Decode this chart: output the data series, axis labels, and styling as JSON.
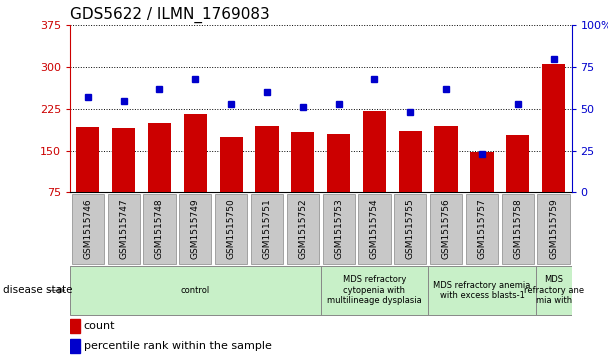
{
  "title": "GDS5622 / ILMN_1769083",
  "samples": [
    "GSM1515746",
    "GSM1515747",
    "GSM1515748",
    "GSM1515749",
    "GSM1515750",
    "GSM1515751",
    "GSM1515752",
    "GSM1515753",
    "GSM1515754",
    "GSM1515755",
    "GSM1515756",
    "GSM1515757",
    "GSM1515758",
    "GSM1515759"
  ],
  "counts": [
    192,
    190,
    200,
    215,
    175,
    195,
    183,
    180,
    222,
    185,
    195,
    147,
    178,
    305
  ],
  "percentiles": [
    57,
    55,
    62,
    68,
    53,
    60,
    51,
    53,
    68,
    48,
    62,
    23,
    53,
    80
  ],
  "ylim_left": [
    75,
    375
  ],
  "ylim_right": [
    0,
    100
  ],
  "yticks_left": [
    75,
    150,
    225,
    300,
    375
  ],
  "yticks_right": [
    0,
    25,
    50,
    75,
    100
  ],
  "bar_color": "#cc0000",
  "dot_color": "#0000cc",
  "disease_groups": [
    {
      "label": "control",
      "start": 0,
      "end": 7
    },
    {
      "label": "MDS refractory\ncytopenia with\nmultilineage dysplasia",
      "start": 7,
      "end": 10
    },
    {
      "label": "MDS refractory anemia\nwith excess blasts-1",
      "start": 10,
      "end": 13
    },
    {
      "label": "MDS\nrefractory ane\nmia with",
      "start": 13,
      "end": 14
    }
  ],
  "left_axis_color": "#cc0000",
  "right_axis_color": "#0000cc",
  "legend_count_label": "count",
  "legend_percentile_label": "percentile rank within the sample",
  "disease_state_label": "disease state",
  "tick_box_color": "#c8c8c8",
  "disease_box_color": "#c8f0c8",
  "grid_color": "#000000"
}
